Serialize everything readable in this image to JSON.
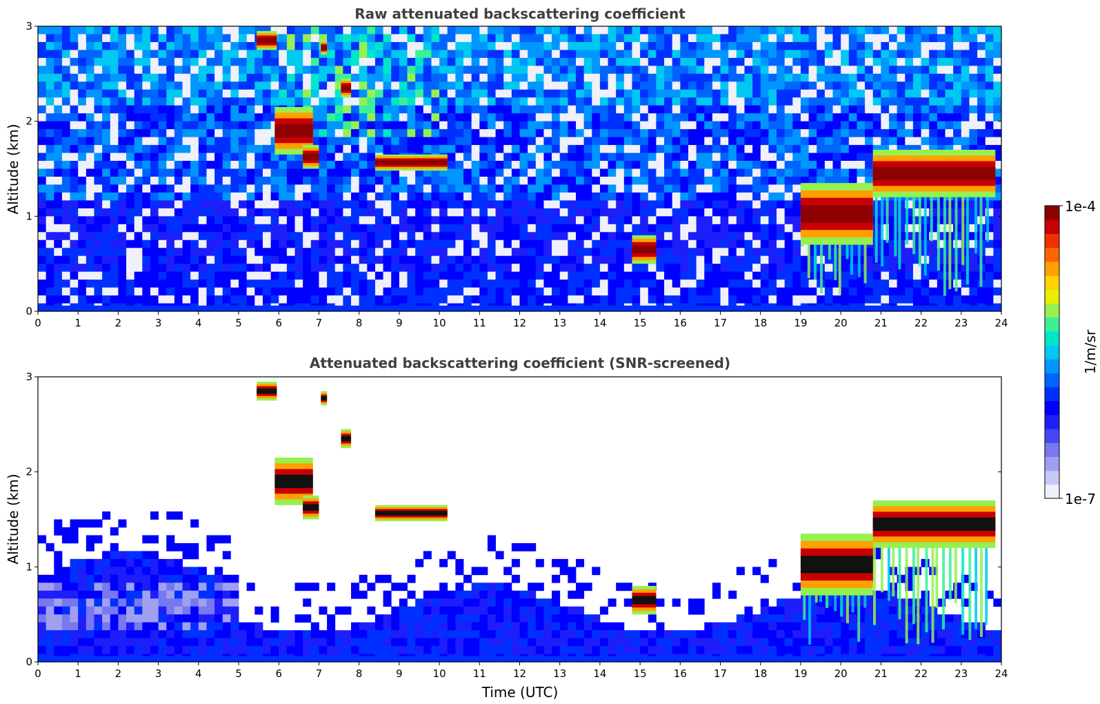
{
  "chart_data": [
    {
      "type": "heatmap",
      "title": "Raw attenuated backscattering coefficient",
      "xlabel": "",
      "ylabel": "Altitude (km)",
      "xlim": [
        0,
        24
      ],
      "ylim": [
        0,
        3
      ],
      "x_ticks": [
        "0",
        "1",
        "2",
        "3",
        "4",
        "5",
        "6",
        "7",
        "8",
        "9",
        "10",
        "11",
        "12",
        "13",
        "14",
        "15",
        "16",
        "17",
        "18",
        "19",
        "20",
        "21",
        "22",
        "23",
        "24"
      ],
      "y_ticks": [
        "0",
        "1",
        "2",
        "3"
      ],
      "features": [
        {
          "kind": "cloud",
          "t": [
            5.45,
            5.95
          ],
          "alt": [
            2.75,
            2.95
          ]
        },
        {
          "kind": "cloud",
          "t": [
            5.9,
            6.85
          ],
          "alt": [
            1.65,
            2.15
          ]
        },
        {
          "kind": "cloud",
          "t": [
            6.6,
            7.0
          ],
          "alt": [
            1.5,
            1.75
          ]
        },
        {
          "kind": "cloud",
          "t": [
            7.05,
            7.2
          ],
          "alt": [
            2.7,
            2.85
          ]
        },
        {
          "kind": "cloud",
          "t": [
            7.55,
            7.8
          ],
          "alt": [
            2.25,
            2.45
          ]
        },
        {
          "kind": "cloud",
          "t": [
            8.4,
            10.2
          ],
          "alt": [
            1.48,
            1.65
          ]
        },
        {
          "kind": "cloud",
          "t": [
            14.8,
            15.4
          ],
          "alt": [
            0.5,
            0.8
          ]
        },
        {
          "kind": "cloud",
          "t": [
            19.0,
            20.8
          ],
          "alt": [
            0.7,
            1.35
          ]
        },
        {
          "kind": "cloud",
          "t": [
            20.8,
            23.85
          ],
          "alt": [
            1.2,
            1.7
          ]
        }
      ]
    },
    {
      "type": "heatmap",
      "title": "Attenuated backscattering coefficient (SNR-screened)",
      "xlabel": "Time (UTC)",
      "ylabel": "Altitude (km)",
      "xlim": [
        0,
        24
      ],
      "ylim": [
        0,
        3
      ],
      "x_ticks": [
        "0",
        "1",
        "2",
        "3",
        "4",
        "5",
        "6",
        "7",
        "8",
        "9",
        "10",
        "11",
        "12",
        "13",
        "14",
        "15",
        "16",
        "17",
        "18",
        "19",
        "20",
        "21",
        "22",
        "23",
        "24"
      ],
      "y_ticks": [
        "0",
        "1",
        "2",
        "3"
      ],
      "features": [
        {
          "kind": "cloud",
          "t": [
            5.45,
            5.95
          ],
          "alt": [
            2.75,
            2.95
          ]
        },
        {
          "kind": "cloud",
          "t": [
            5.9,
            6.85
          ],
          "alt": [
            1.65,
            2.15
          ]
        },
        {
          "kind": "cloud",
          "t": [
            6.6,
            7.0
          ],
          "alt": [
            1.5,
            1.75
          ]
        },
        {
          "kind": "cloud",
          "t": [
            7.05,
            7.2
          ],
          "alt": [
            2.7,
            2.85
          ]
        },
        {
          "kind": "cloud",
          "t": [
            7.55,
            7.8
          ],
          "alt": [
            2.25,
            2.45
          ]
        },
        {
          "kind": "cloud",
          "t": [
            8.4,
            10.2
          ],
          "alt": [
            1.48,
            1.65
          ]
        },
        {
          "kind": "cloud",
          "t": [
            14.8,
            15.4
          ],
          "alt": [
            0.5,
            0.8
          ]
        },
        {
          "kind": "cloud",
          "t": [
            19.0,
            20.8
          ],
          "alt": [
            0.7,
            1.35
          ]
        },
        {
          "kind": "cloud",
          "t": [
            20.8,
            23.85
          ],
          "alt": [
            1.2,
            1.7
          ]
        }
      ]
    }
  ],
  "colorbar": {
    "label": "1/m/sr",
    "max_label": "1e-4",
    "min_label": "1e-7",
    "scale": "log",
    "colors": [
      "#f0f0fa",
      "#c8c8f5",
      "#a0a0f0",
      "#7878f0",
      "#4646f5",
      "#1e1efa",
      "#0000ff",
      "#0030ff",
      "#0064ff",
      "#0096ff",
      "#00c8f0",
      "#00e6c8",
      "#3cf096",
      "#96f050",
      "#e6f000",
      "#ffd200",
      "#ffa000",
      "#ff6400",
      "#f03000",
      "#c80000",
      "#8c0000"
    ]
  }
}
